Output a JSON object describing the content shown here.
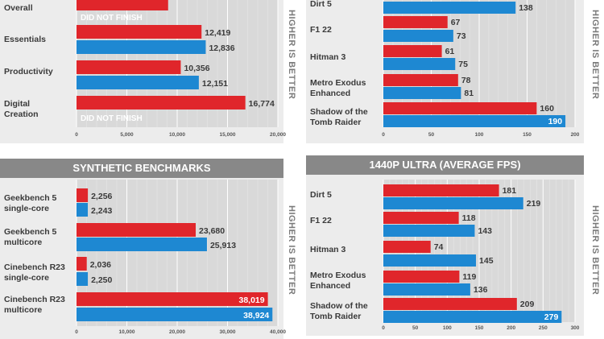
{
  "colors": {
    "red": "#e0262b",
    "blue": "#1e88d2",
    "label": "#3a3a3a",
    "grid": "#ffffff",
    "plot_bg": "#d9d9d9",
    "header_bg": "#888888"
  },
  "chart_data": [
    {
      "type": "bar",
      "orientation": "horizontal",
      "title": "",
      "categories": [
        "Overall",
        "Essentials",
        "Productivity",
        "Digital Creation"
      ],
      "series": [
        {
          "values": [
            9100,
            12419,
            10356,
            16774
          ],
          "labels": [
            "",
            "12,419",
            "10,356",
            "16,774"
          ]
        },
        {
          "values": [
            null,
            12836,
            12151,
            null
          ],
          "labels": [
            "DID NOT FINISH",
            "12,836",
            "12,151",
            "DID NOT FINISH"
          ]
        }
      ],
      "xticks": [
        0,
        5000,
        10000,
        15000,
        20000
      ],
      "xtick_labels": [
        "0",
        "5,000",
        "10,000",
        "15,000",
        "20,000"
      ],
      "xlim": [
        0,
        20000
      ],
      "side_label": "HIGHER IS BETTER"
    },
    {
      "type": "bar",
      "orientation": "horizontal",
      "title": "",
      "categories": [
        "Dirt 5",
        "F1 22",
        "Hitman 3",
        "Metro Exodus Enhanced",
        "Shadow of the Tomb Raider"
      ],
      "series": [
        {
          "values": [
            null,
            67,
            61,
            78,
            160
          ],
          "labels": [
            "",
            "67",
            "61",
            "78",
            "160"
          ]
        },
        {
          "values": [
            138,
            73,
            75,
            81,
            190
          ],
          "labels": [
            "138",
            "73",
            "75",
            "81",
            "190"
          ]
        }
      ],
      "xticks": [
        0,
        50,
        100,
        150,
        200
      ],
      "xtick_labels": [
        "0",
        "50",
        "100",
        "150",
        "200"
      ],
      "xlim": [
        0,
        200
      ],
      "side_label": "HIGHER IS BETTER"
    },
    {
      "type": "bar",
      "orientation": "horizontal",
      "title": "SYNTHETIC BENCHMARKS",
      "categories": [
        "Geekbench 5 single-core",
        "Geekbench 5 multicore",
        "Cinebench R23 single-core",
        "Cinebench R23 multicore"
      ],
      "series": [
        {
          "values": [
            2256,
            23680,
            2036,
            38019
          ],
          "labels": [
            "2,256",
            "23,680",
            "2,036",
            "38,019"
          ]
        },
        {
          "values": [
            2243,
            25913,
            2250,
            38924
          ],
          "labels": [
            "2,243",
            "25,913",
            "2,250",
            "38,924"
          ]
        }
      ],
      "xticks": [
        0,
        10000,
        20000,
        30000,
        40000
      ],
      "xtick_labels": [
        "0",
        "10,000",
        "20,000",
        "30,000",
        "40,000"
      ],
      "xlim": [
        0,
        40000
      ],
      "side_label": "HIGHER IS BETTER"
    },
    {
      "type": "bar",
      "orientation": "horizontal",
      "title": "1440P ULTRA (AVERAGE FPS)",
      "categories": [
        "Dirt 5",
        "F1 22",
        "Hitman 3",
        "Metro Exodus Enhanced",
        "Shadow of the Tomb Raider"
      ],
      "series": [
        {
          "values": [
            181,
            118,
            74,
            119,
            209
          ],
          "labels": [
            "181",
            "118",
            "74",
            "119",
            "209"
          ]
        },
        {
          "values": [
            219,
            143,
            145,
            136,
            279
          ],
          "labels": [
            "219",
            "143",
            "145",
            "136",
            "279"
          ]
        }
      ],
      "xticks": [
        0,
        50,
        100,
        150,
        200,
        250,
        300
      ],
      "xtick_labels": [
        "0",
        "50",
        "100",
        "150",
        "200",
        "250",
        "300"
      ],
      "xlim": [
        0,
        300
      ],
      "side_label": "HIGHER IS BETTER"
    }
  ]
}
